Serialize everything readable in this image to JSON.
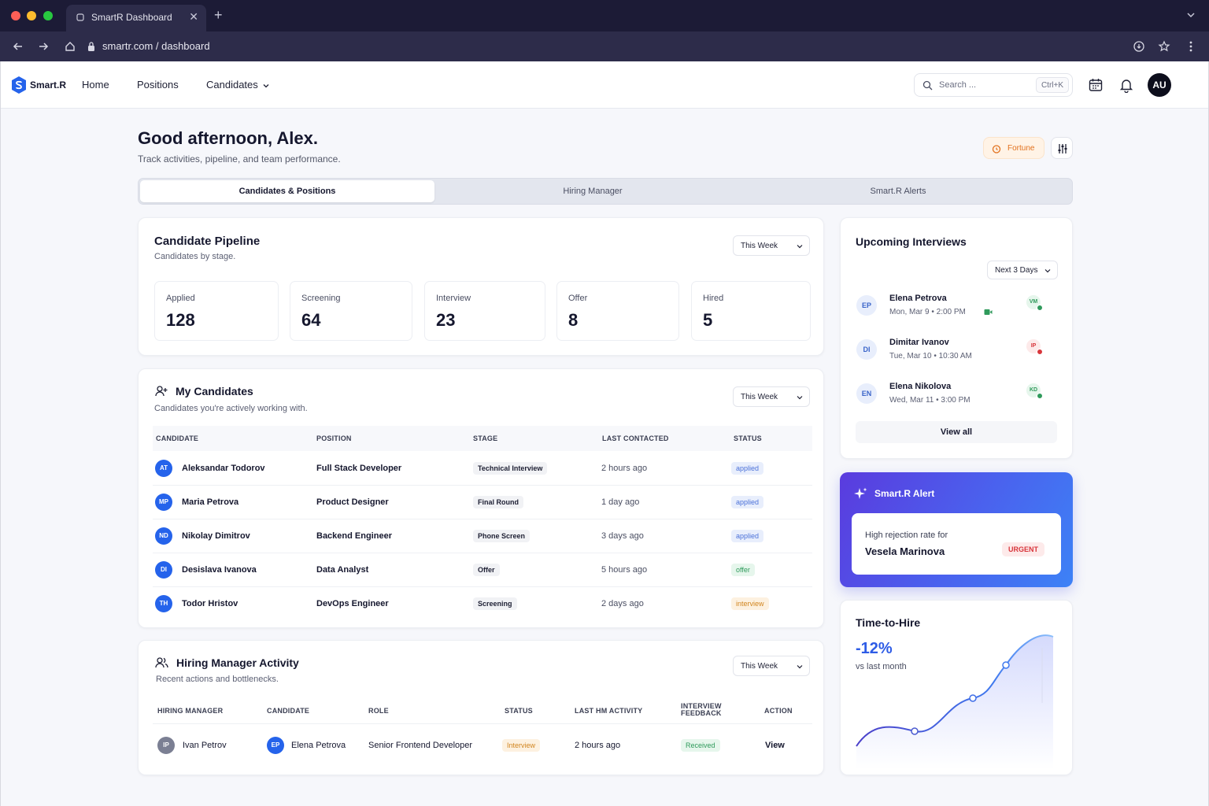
{
  "browser": {
    "tab_title": "SmartR Dashboard",
    "url": "smartr.com / dashboard"
  },
  "nav": {
    "brand": "Smart.R",
    "links": [
      "Home",
      "Positions",
      "Candidates"
    ],
    "search_placeholder": "Search ...",
    "search_shortcut": "Ctrl+K",
    "avatar": "AU"
  },
  "header": {
    "greeting": "Good afternoon, Alex.",
    "subtitle": "Track activities, pipeline, and team performance.",
    "fortune_label": "Fortune"
  },
  "tabs": [
    "Candidates & Positions",
    "Hiring Manager",
    "Smart.R Alerts"
  ],
  "pipeline": {
    "title": "Candidate Pipeline",
    "subtitle": "Candidates by stage.",
    "range": "This Week",
    "stages": [
      {
        "label": "Applied",
        "value": "128"
      },
      {
        "label": "Screening",
        "value": "64"
      },
      {
        "label": "Interview",
        "value": "23"
      },
      {
        "label": "Offer",
        "value": "8"
      },
      {
        "label": "Hired",
        "value": "5"
      }
    ]
  },
  "my_candidates": {
    "title": "My Candidates",
    "subtitle": "Candidates you're actively working with.",
    "range": "This Week",
    "columns": [
      "CANDIDATE",
      "POSITION",
      "STAGE",
      "LAST CONTACTED",
      "STATUS"
    ],
    "rows": [
      {
        "initials": "AT",
        "name": "Aleksandar Todorov",
        "position": "Full Stack Developer",
        "stage": "Technical Interview",
        "contacted": "2 hours ago",
        "status": "applied"
      },
      {
        "initials": "MP",
        "name": "Maria Petrova",
        "position": "Product Designer",
        "stage": "Final Round",
        "contacted": "1 day ago",
        "status": "applied"
      },
      {
        "initials": "ND",
        "name": "Nikolay Dimitrov",
        "position": "Backend Engineer",
        "stage": "Phone Screen",
        "contacted": "3 days ago",
        "status": "applied"
      },
      {
        "initials": "DI",
        "name": "Desislava Ivanova",
        "position": "Data Analyst",
        "stage": "Offer",
        "contacted": "5 hours ago",
        "status": "offer"
      },
      {
        "initials": "TH",
        "name": "Todor Hristov",
        "position": "DevOps Engineer",
        "stage": "Screening",
        "contacted": "2 days ago",
        "status": "interview"
      }
    ]
  },
  "hm_activity": {
    "title": "Hiring Manager Activity",
    "subtitle": "Recent actions and bottlenecks.",
    "range": "This Week",
    "columns": [
      "HIRING MANAGER",
      "CANDIDATE",
      "ROLE",
      "STATUS",
      "LAST HM ACTIVITY",
      "INTERVIEW FEEDBACK",
      "ACTION"
    ],
    "rows": [
      {
        "hm_initials": "IP",
        "hm_name": "Ivan Petrov",
        "cand_initials": "EP",
        "cand_name": "Elena Petrova",
        "role": "Senior Frontend Developer",
        "status": "Interview",
        "last_activity": "2 hours ago",
        "feedback": "Received",
        "action": "View"
      }
    ]
  },
  "interviews": {
    "title": "Upcoming Interviews",
    "range": "Next 3 Days",
    "items": [
      {
        "initials": "EP",
        "name": "Elena Petrova",
        "time": "Mon, Mar 9 • 2:00 PM",
        "badge": "VM",
        "badge_color": "#2f9a5b"
      },
      {
        "initials": "DI",
        "name": "Dimitar Ivanov",
        "time": "Tue, Mar 10 • 10:30 AM",
        "badge": "IP",
        "badge_color": "#d8363c"
      },
      {
        "initials": "EN",
        "name": "Elena Nikolova",
        "time": "Wed, Mar 11 • 3:00 PM",
        "badge": "KD",
        "badge_color": "#2f9a5b"
      }
    ],
    "view_all": "View all"
  },
  "alert": {
    "title": "Smart.R Alert",
    "text": "High rejection rate for",
    "name": "Vesela Marinova",
    "badge": "URGENT"
  },
  "time_to_hire": {
    "title": "Time-to-Hire",
    "value": "-12%",
    "caption": "vs last month"
  },
  "colors": {
    "accent": "#2563eb",
    "alert_gradient_start": "#5a3bde",
    "alert_gradient_end": "#3d82f6",
    "fortune": "#e2711d"
  }
}
